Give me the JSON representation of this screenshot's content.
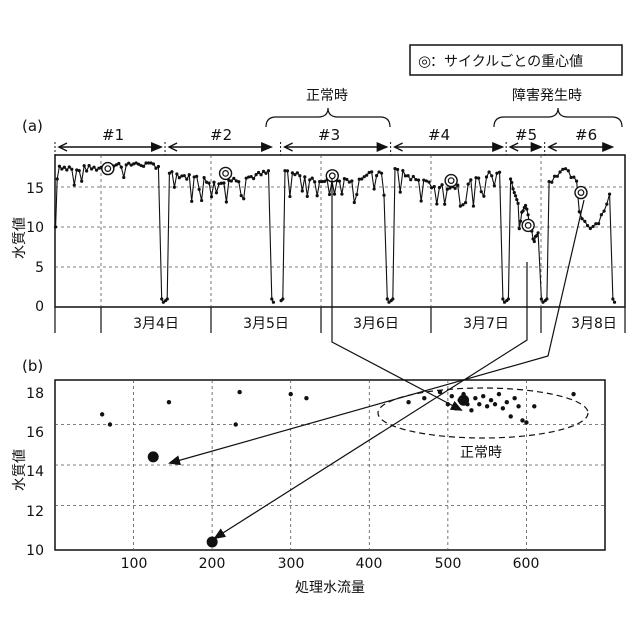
{
  "legend": {
    "symbol": "◎",
    "text": "：サイクルごとの重心値"
  },
  "annotations": {
    "normal_top": "正常時",
    "fault_top": "障害発生時",
    "normal_bottom": "正常時"
  },
  "chart_data": [
    {
      "panel_label": "(a)",
      "type": "line",
      "ylabel": "水質値",
      "yticks": [
        "0",
        "5",
        "10",
        "15"
      ],
      "ylim": [
        0,
        19
      ],
      "date_labels": [
        "3月4日",
        "3月5日",
        "3月6日",
        "3月7日",
        "3月8日"
      ],
      "cycles": [
        {
          "label": "#1",
          "x_range": [
            0,
            1.0
          ]
        },
        {
          "label": "#2",
          "x_range": [
            1.0,
            2.0
          ]
        },
        {
          "label": "#3",
          "x_range": [
            2.05,
            3.05
          ]
        },
        {
          "label": "#4",
          "x_range": [
            3.05,
            4.1
          ]
        },
        {
          "label": "#5",
          "x_range": [
            4.1,
            4.45
          ]
        },
        {
          "label": "#6",
          "x_range": [
            4.45,
            5.1
          ]
        }
      ],
      "centroids": [
        {
          "cycle": "#1",
          "x": 0.48,
          "y": 17.3
        },
        {
          "cycle": "#2",
          "x": 1.55,
          "y": 16.7
        },
        {
          "cycle": "#3",
          "x": 2.52,
          "y": 16.4
        },
        {
          "cycle": "#4",
          "x": 3.6,
          "y": 15.8
        },
        {
          "cycle": "#5",
          "x": 4.3,
          "y": 10.2
        },
        {
          "cycle": "#6",
          "x": 4.78,
          "y": 14.3
        }
      ],
      "grid": true
    },
    {
      "panel_label": "(b)",
      "type": "scatter",
      "xlabel": "処理水流量",
      "ylabel": "水質値",
      "xticks": [
        "100",
        "200",
        "300",
        "400",
        "500",
        "600"
      ],
      "yticks": [
        "10",
        "12",
        "14",
        "16",
        "18"
      ],
      "xlim": [
        0,
        700
      ],
      "ylim": [
        10,
        18
      ],
      "grid": true,
      "points": [
        [
          60,
          16.5
        ],
        [
          70,
          16.0
        ],
        [
          145,
          17.1
        ],
        [
          230,
          16.0
        ],
        [
          235,
          17.6
        ],
        [
          300,
          17.5
        ],
        [
          320,
          17.3
        ],
        [
          450,
          17.1
        ],
        [
          470,
          17.3
        ],
        [
          490,
          17.6
        ],
        [
          500,
          17.0
        ],
        [
          505,
          17.4
        ],
        [
          510,
          16.8
        ],
        [
          515,
          17.2
        ],
        [
          520,
          17.5
        ],
        [
          525,
          17.0
        ],
        [
          530,
          16.7
        ],
        [
          535,
          17.3
        ],
        [
          540,
          17.0
        ],
        [
          545,
          17.4
        ],
        [
          550,
          16.9
        ],
        [
          555,
          17.2
        ],
        [
          560,
          17.0
        ],
        [
          565,
          17.5
        ],
        [
          570,
          16.8
        ],
        [
          575,
          17.1
        ],
        [
          580,
          16.4
        ],
        [
          585,
          17.3
        ],
        [
          590,
          16.9
        ],
        [
          595,
          16.2
        ],
        [
          600,
          16.1
        ],
        [
          610,
          16.9
        ],
        [
          660,
          17.5
        ]
      ],
      "centroid_points": [
        {
          "x": 520,
          "y": 17.2
        },
        {
          "x": 125,
          "y": 14.4
        },
        {
          "x": 200,
          "y": 10.2
        }
      ]
    }
  ]
}
